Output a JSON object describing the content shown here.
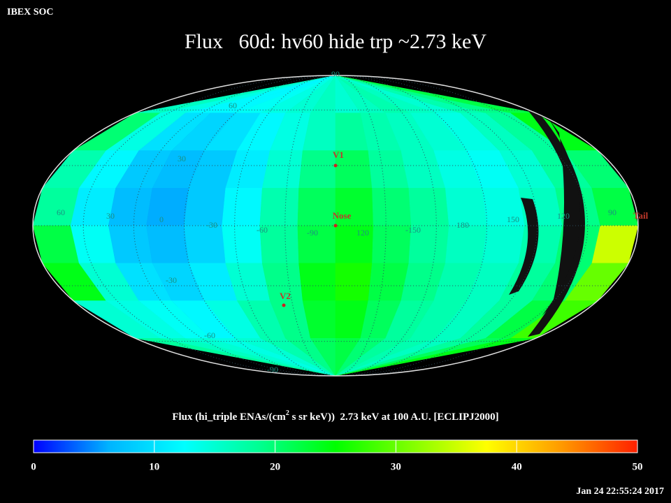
{
  "chart_data": {
    "type": "map",
    "header": "IBEX SOC",
    "title": "Flux   60d: hv60 hide trp ~2.73 keV",
    "timestamp": "Jan 24 22:55:24 2017",
    "colormap": [
      "#0000ff",
      "#00b4ff",
      "#00ffff",
      "#00ff90",
      "#00ff00",
      "#80ff00",
      "#ffff00",
      "#ff9900",
      "#ff2000"
    ],
    "flux_grid": [
      [
        16,
        14,
        12,
        12,
        13,
        14,
        15,
        16,
        15,
        16,
        17,
        16,
        15,
        17,
        19,
        22
      ],
      [
        20,
        14,
        10,
        9,
        10,
        12,
        14,
        16,
        18,
        17,
        16,
        15,
        14,
        16,
        18,
        24
      ],
      [
        17,
        12,
        8,
        7,
        8,
        11,
        15,
        19,
        21,
        18,
        16,
        14,
        13,
        15,
        18,
        20
      ],
      [
        18,
        11,
        7,
        6,
        8,
        12,
        17,
        21,
        23,
        20,
        18,
        15,
        14,
        16,
        19,
        22
      ],
      [
        22,
        13,
        8,
        7,
        9,
        13,
        18,
        22,
        24,
        21,
        18,
        16,
        15,
        17,
        20,
        35
      ],
      [
        24,
        15,
        10,
        9,
        11,
        15,
        19,
        24,
        26,
        22,
        19,
        17,
        16,
        18,
        20,
        30
      ],
      [
        15,
        14,
        13,
        12,
        14,
        17,
        19,
        23,
        24,
        21,
        18,
        17,
        16,
        18,
        22,
        28
      ],
      [
        18,
        16,
        15,
        14,
        15,
        17,
        19,
        21,
        22,
        20,
        18,
        17,
        16,
        18,
        21,
        24
      ]
    ],
    "longitude_labels": [
      "60",
      "30",
      "0",
      "-30",
      "-60",
      "-90",
      "120",
      "-150",
      "180",
      "150",
      "120",
      "90"
    ],
    "latitude_labels": [
      "90",
      "60",
      "30",
      "-30",
      "-60",
      "-90"
    ],
    "markers": [
      "V1",
      "Nose",
      "V2",
      "Tail"
    ],
    "colorbar": {
      "label_parts": [
        "Flux (hi_triple ENAs/(cm",
        "2",
        " s sr keV))  2.73 keV at 100 A.U. [ECLIPJ2000]"
      ],
      "lim": [
        0,
        50
      ],
      "ticks": [
        0,
        10,
        20,
        30,
        40,
        50
      ]
    }
  }
}
